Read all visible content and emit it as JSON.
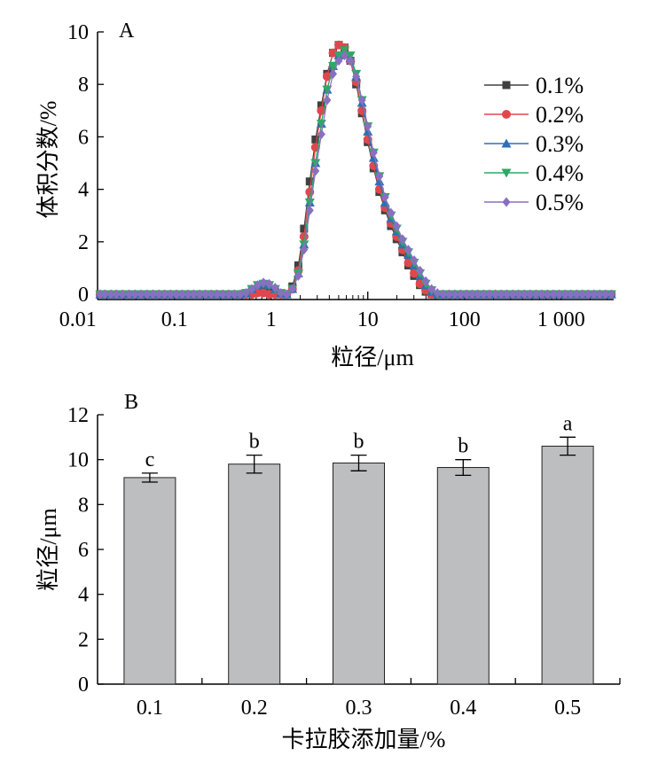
{
  "chart_data": [
    {
      "panel": "A",
      "type": "line",
      "x_scale": "log",
      "xlim": [
        0.016,
        3500
      ],
      "ylim": [
        -0.2,
        10
      ],
      "xticks": [
        0.01,
        0.1,
        1,
        10,
        100,
        1000
      ],
      "xtick_labels": [
        "0.01",
        "0.1",
        "1",
        "10",
        "100",
        "1 000"
      ],
      "yticks": [
        0,
        2,
        4,
        6,
        8,
        10
      ],
      "ytick_labels": [
        "0",
        "2",
        "4",
        "6",
        "8",
        "10"
      ],
      "xlabel": "粒径/μm",
      "ylabel": "体积分数/%",
      "legend": "top-right",
      "x": [
        0.017,
        0.019,
        0.022,
        0.025,
        0.029,
        0.034,
        0.039,
        0.045,
        0.052,
        0.06,
        0.069,
        0.079,
        0.091,
        0.105,
        0.12,
        0.138,
        0.158,
        0.182,
        0.209,
        0.24,
        0.275,
        0.316,
        0.363,
        0.417,
        0.479,
        0.55,
        0.631,
        0.724,
        0.832,
        0.955,
        1.1,
        1.26,
        1.45,
        1.66,
        1.91,
        2.19,
        2.51,
        2.88,
        3.31,
        3.8,
        4.37,
        5.01,
        5.75,
        6.61,
        7.59,
        8.71,
        10.0,
        11.5,
        13.2,
        15.1,
        17.4,
        19.9,
        22.9,
        26.3,
        30.2,
        34.7,
        39.8,
        45.7,
        52.5,
        60.3,
        69.2,
        79.4,
        91.2,
        105,
        120,
        138,
        158,
        182,
        209,
        240,
        275,
        316,
        363,
        417,
        479,
        550,
        631,
        724,
        832,
        955,
        1100,
        1260,
        1450,
        1660,
        1910,
        2190,
        2510,
        2880,
        3310
      ],
      "series": [
        {
          "name": "0.1%",
          "color": "#404040",
          "marker": "square",
          "values": [
            0,
            0,
            0,
            0,
            0,
            0,
            0,
            0,
            0,
            0,
            0,
            0,
            0,
            0,
            0,
            0,
            0,
            0,
            0,
            0,
            0,
            0,
            0,
            0,
            0,
            0,
            0.1,
            0.2,
            0.25,
            0.2,
            0.1,
            0,
            0,
            0.3,
            1.1,
            2.5,
            4.3,
            5.9,
            7.2,
            8.4,
            9.2,
            9.5,
            9.4,
            8.9,
            8.0,
            6.9,
            5.8,
            4.8,
            3.9,
            3.2,
            2.6,
            2.1,
            1.6,
            1.1,
            0.7,
            0.35,
            0.1,
            0,
            0,
            0,
            0,
            0,
            0,
            0,
            0,
            0,
            0,
            0,
            0,
            0,
            0,
            0,
            0,
            0,
            0,
            0,
            0,
            0,
            0,
            0,
            0,
            0,
            0,
            0,
            0,
            0,
            0,
            0,
            0
          ]
        },
        {
          "name": "0.2%",
          "color": "#e0474c",
          "marker": "circle",
          "values": [
            0,
            0,
            0,
            0,
            0,
            0,
            0,
            0,
            0,
            0,
            0,
            0,
            0,
            0,
            0,
            0,
            0,
            0,
            0,
            0,
            0,
            0,
            0,
            0,
            0,
            0,
            0,
            0.05,
            0.05,
            0,
            0,
            0,
            0,
            0.2,
            0.9,
            2.2,
            3.9,
            5.6,
            7.0,
            8.3,
            9.2,
            9.5,
            9.4,
            8.9,
            8.1,
            7.0,
            5.9,
            4.9,
            4.0,
            3.3,
            2.7,
            2.2,
            1.7,
            1.2,
            0.8,
            0.4,
            0.15,
            0,
            0,
            0,
            0,
            0,
            0,
            0,
            0,
            0,
            0,
            0,
            0,
            0,
            0,
            0,
            0,
            0,
            0,
            0,
            0,
            0,
            0,
            0,
            0,
            0,
            0,
            0,
            0,
            0,
            0,
            0,
            0
          ]
        },
        {
          "name": "0.3%",
          "color": "#2f6fb5",
          "marker": "triangle-up",
          "values": [
            0,
            0,
            0,
            0,
            0,
            0,
            0,
            0,
            0,
            0,
            0,
            0,
            0,
            0,
            0,
            0,
            0,
            0,
            0,
            0,
            0,
            0,
            0,
            0,
            0,
            0.05,
            0.2,
            0.35,
            0.4,
            0.35,
            0.2,
            0.05,
            0,
            0.2,
            0.8,
            1.9,
            3.5,
            5.0,
            6.5,
            7.8,
            8.7,
            9.1,
            9.2,
            9.0,
            8.3,
            7.3,
            6.2,
            5.2,
            4.3,
            3.5,
            2.9,
            2.4,
            1.9,
            1.5,
            1.1,
            0.7,
            0.35,
            0.1,
            0,
            0,
            0,
            0,
            0,
            0,
            0,
            0,
            0,
            0,
            0,
            0,
            0,
            0,
            0,
            0,
            0,
            0,
            0,
            0,
            0,
            0,
            0,
            0,
            0,
            0,
            0,
            0,
            0,
            0,
            0
          ]
        },
        {
          "name": "0.4%",
          "color": "#2ea866",
          "marker": "triangle-down",
          "values": [
            0,
            0,
            0,
            0,
            0,
            0,
            0,
            0,
            0,
            0,
            0,
            0,
            0,
            0,
            0,
            0,
            0,
            0,
            0,
            0,
            0,
            0,
            0,
            0,
            0,
            0.05,
            0.2,
            0.35,
            0.4,
            0.35,
            0.2,
            0.05,
            0,
            0.2,
            0.8,
            1.9,
            3.5,
            5.0,
            6.5,
            7.8,
            8.7,
            9.1,
            9.3,
            9.1,
            8.4,
            7.4,
            6.4,
            5.4,
            4.5,
            3.7,
            3.0,
            2.5,
            2.0,
            1.6,
            1.2,
            0.8,
            0.4,
            0.15,
            0,
            0,
            0,
            0,
            0,
            0,
            0,
            0,
            0,
            0,
            0,
            0,
            0,
            0,
            0,
            0,
            0,
            0,
            0,
            0,
            0,
            0,
            0,
            0,
            0,
            0,
            0,
            0,
            0,
            0,
            0
          ]
        },
        {
          "name": "0.5%",
          "color": "#8a6fc0",
          "marker": "diamond",
          "values": [
            0,
            0,
            0,
            0,
            0,
            0,
            0,
            0,
            0,
            0,
            0,
            0,
            0,
            0,
            0,
            0,
            0,
            0,
            0,
            0,
            0,
            0,
            0,
            0,
            0,
            0.05,
            0.2,
            0.35,
            0.45,
            0.4,
            0.25,
            0.05,
            0,
            0.2,
            0.7,
            1.7,
            3.2,
            4.7,
            6.1,
            7.4,
            8.4,
            8.9,
            9.1,
            8.9,
            8.3,
            7.4,
            6.4,
            5.4,
            4.5,
            3.7,
            3.1,
            2.6,
            2.1,
            1.7,
            1.3,
            0.9,
            0.5,
            0.2,
            0.05,
            0,
            0,
            0,
            0,
            0,
            0,
            0,
            0,
            0,
            0,
            0,
            0,
            0,
            0,
            0,
            0,
            0,
            0,
            0,
            0,
            0,
            0,
            0,
            0,
            0,
            0,
            0,
            0,
            0,
            0
          ]
        }
      ]
    },
    {
      "panel": "B",
      "type": "bar",
      "categories": [
        "0.1",
        "0.2",
        "0.3",
        "0.4",
        "0.5"
      ],
      "values": [
        9.2,
        9.8,
        9.85,
        9.65,
        10.6
      ],
      "errors": [
        0.2,
        0.4,
        0.35,
        0.35,
        0.4
      ],
      "labels": [
        "c",
        "b",
        "b",
        "b",
        "a"
      ],
      "ylim": [
        0,
        12
      ],
      "yticks": [
        0,
        2,
        4,
        6,
        8,
        10,
        12
      ],
      "ytick_labels": [
        "0",
        "2",
        "4",
        "6",
        "8",
        "10",
        "12"
      ],
      "xlabel": "卡拉胶添加量/%",
      "ylabel": "粒径/μm",
      "bar_color": "#bdbec0"
    }
  ]
}
